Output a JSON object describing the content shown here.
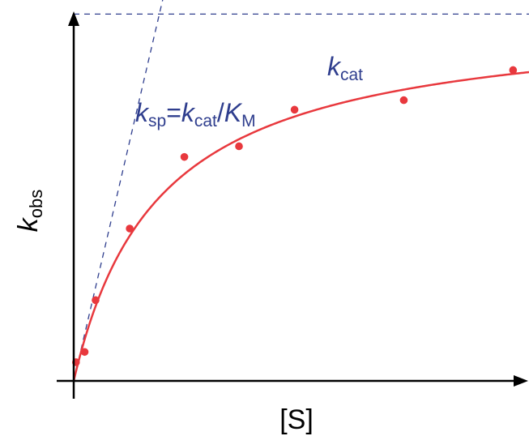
{
  "colors": {
    "axis": "#000000",
    "fit": "#e8383d",
    "points": "#e8383d",
    "guides": "#2f3e8e"
  },
  "chart_data": {
    "type": "scatter",
    "title": "",
    "xlabel": "[S]",
    "ylabel": {
      "main": "k",
      "sub": "obs"
    },
    "axes": {
      "ticks": false,
      "arrows": true,
      "grid": false
    },
    "xlim": [
      0,
      100
    ],
    "ylim": [
      0,
      100
    ],
    "series": [
      {
        "kind": "points",
        "x": [
          0.5,
          2.4,
          4.8,
          12.3,
          24.3,
          36.3,
          48.5,
          72.5,
          96.5
        ],
        "y": [
          4.9,
          7.6,
          21.2,
          40.0,
          58.8,
          61.6,
          71.2,
          73.7,
          81.6
        ]
      },
      {
        "kind": "fit",
        "model": "michaelis-menten",
        "vmax": 96.3,
        "km": 18.8,
        "x_range": [
          0,
          100
        ]
      }
    ],
    "annotations": {
      "kcat": {
        "type": "horizontal-dashed",
        "y": 96.3,
        "label_main": "k",
        "label_sub": "cat"
      },
      "ksp": {
        "type": "tangent-dashed",
        "through": [
          0,
          0
        ],
        "slope": 5.12,
        "label": {
          "k1": "k",
          "s1": "sp",
          "eq": "=",
          "k2": "k",
          "s2": "cat",
          "slash": "/",
          "k3": "K",
          "s3": "M"
        }
      }
    }
  }
}
